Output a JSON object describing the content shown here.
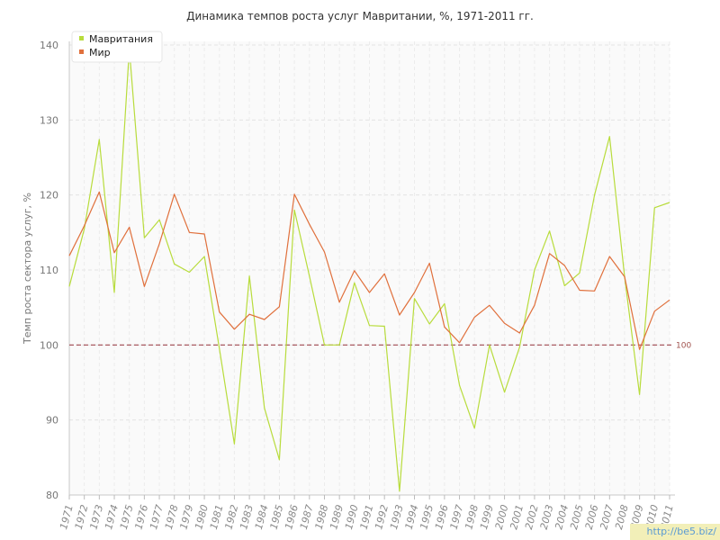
{
  "chart_data": {
    "type": "line",
    "title": "Динамика темпов роста услуг Мавритании, %, 1971-2011 гг.",
    "xlabel": "",
    "ylabel": "Темп роста сектора услуг, %",
    "ylim": [
      80,
      140
    ],
    "yticks": [
      80,
      90,
      100,
      110,
      120,
      130,
      140
    ],
    "grid": true,
    "legend_position": "top-left",
    "categories": [
      "1971",
      "1972",
      "1973",
      "1974",
      "1975",
      "1976",
      "1977",
      "1978",
      "1979",
      "1980",
      "1981",
      "1982",
      "1983",
      "1984",
      "1985",
      "1986",
      "1987",
      "1988",
      "1989",
      "1990",
      "1991",
      "1992",
      "1993",
      "1994",
      "1995",
      "1996",
      "1997",
      "1998",
      "1999",
      "2000",
      "2001",
      "2002",
      "2003",
      "2004",
      "2005",
      "2006",
      "2007",
      "2008",
      "2009",
      "2010",
      "2011"
    ],
    "series": [
      {
        "name": "Мавритания",
        "color": "#b8dc3c",
        "values": [
          107.8,
          115.5,
          127.4,
          107.0,
          139.5,
          114.3,
          116.7,
          110.8,
          109.7,
          111.8,
          99.5,
          86.8,
          109.2,
          91.6,
          84.7,
          118.0,
          109.2,
          100.0,
          100.0,
          108.3,
          102.6,
          102.5,
          80.5,
          106.2,
          102.8,
          105.5,
          94.6,
          88.9,
          100.0,
          93.7,
          99.7,
          110.0,
          115.2,
          107.9,
          109.6,
          120.0,
          127.8,
          109.1,
          93.4,
          118.3,
          119.0
        ]
      },
      {
        "name": "Мир",
        "color": "#e0703c",
        "values": [
          111.9,
          115.9,
          120.4,
          112.3,
          115.7,
          107.8,
          113.5,
          120.1,
          115.0,
          114.8,
          104.4,
          102.1,
          104.1,
          103.4,
          105.1,
          120.1,
          116.1,
          112.4,
          105.7,
          109.9,
          107.0,
          109.5,
          104.0,
          107.0,
          110.9,
          102.4,
          100.3,
          103.7,
          105.3,
          102.9,
          101.6,
          105.3,
          112.2,
          110.6,
          107.3,
          107.2,
          111.8,
          109.1,
          99.4,
          104.5,
          106.0
        ]
      }
    ],
    "reference_line": {
      "value": 100,
      "label": "100",
      "color": "#a04850"
    }
  },
  "watermark": "http://be5.biz/"
}
